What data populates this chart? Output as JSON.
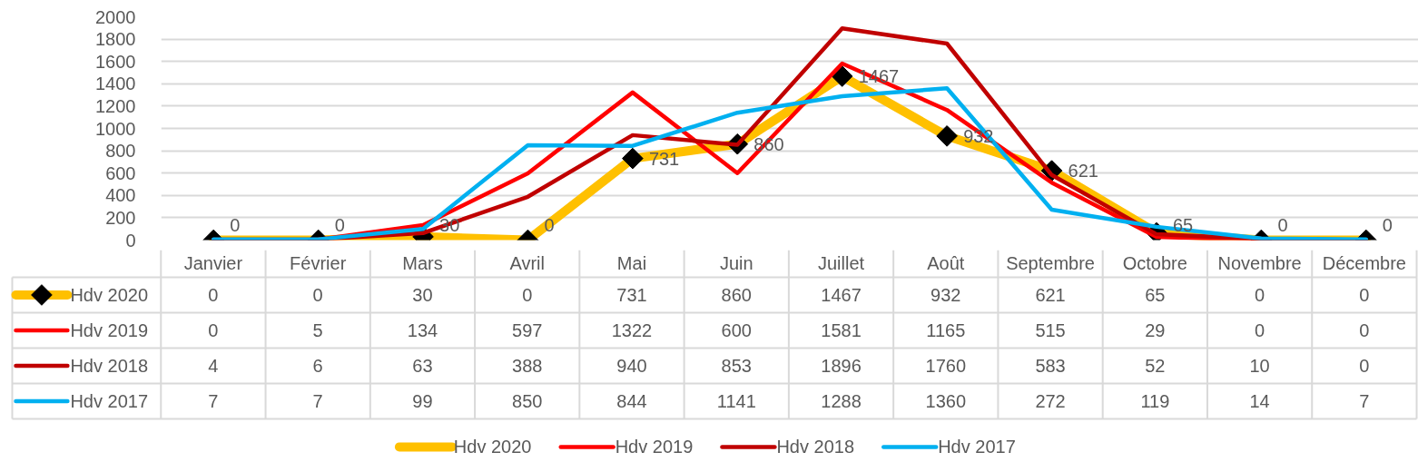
{
  "chart_data": {
    "type": "line",
    "categories": [
      "Janvier",
      "Février",
      "Mars",
      "Avril",
      "Mai",
      "Juin",
      "Juillet",
      "Août",
      "Septembre",
      "Octobre",
      "Novembre",
      "Décembre"
    ],
    "series": [
      {
        "name": "Hdv 2020",
        "color": "#ffc000",
        "values": [
          0,
          0,
          30,
          0,
          731,
          860,
          1467,
          932,
          621,
          65,
          0,
          0
        ],
        "marker": "diamond",
        "colors": [
          "#000000",
          "#000000",
          "#000000",
          "#000000",
          "#000000",
          "#000000",
          "#000000",
          "#000000",
          "#000000",
          "#000000",
          "#000000",
          "#000000"
        ]
      },
      {
        "name": "Hdv 2019",
        "color": "#ff0000",
        "values": [
          0,
          5,
          134,
          597,
          1322,
          600,
          1581,
          1165,
          515,
          29,
          0,
          0
        ]
      },
      {
        "name": "Hdv 2018",
        "color": "#c00000",
        "values": [
          4,
          6,
          63,
          388,
          940,
          853,
          1896,
          1760,
          583,
          52,
          10,
          0
        ]
      },
      {
        "name": "Hdv 2017",
        "color": "#00b0f0",
        "values": [
          7,
          7,
          99,
          850,
          844,
          1141,
          1288,
          1360,
          272,
          119,
          14,
          7
        ]
      }
    ],
    "annotations": [
      {
        "text": "0",
        "x": "Janvier",
        "y": 0
      },
      {
        "text": "0",
        "x": "Février",
        "y": 0
      },
      {
        "text": "30",
        "x": "Mars",
        "y": 30
      },
      {
        "text": "0",
        "x": "Avril",
        "y": 0
      },
      {
        "text": "731",
        "x": "Mai",
        "y": 731
      },
      {
        "text": "860",
        "x": "Juin",
        "y": 860
      },
      {
        "text": "1467",
        "x": "Juillet",
        "y": 1467
      },
      {
        "text": "932",
        "x": "Août",
        "y": 932
      },
      {
        "text": "621",
        "x": "Septembre",
        "y": 621
      },
      {
        "text": "65",
        "x": "Octobre",
        "y": 65
      },
      {
        "text": "0",
        "x": "Novembre",
        "y": 0
      },
      {
        "text": "0",
        "x": "Décembre",
        "y": 0
      }
    ],
    "ylim": [
      0,
      2000
    ],
    "yticks": [
      0,
      200,
      400,
      600,
      800,
      1000,
      1200,
      1400,
      1600,
      1800,
      2000
    ],
    "grid": "y",
    "legend": "bottom",
    "marker": "none",
    "line_style": "solid",
    "data_labels": true
  }
}
